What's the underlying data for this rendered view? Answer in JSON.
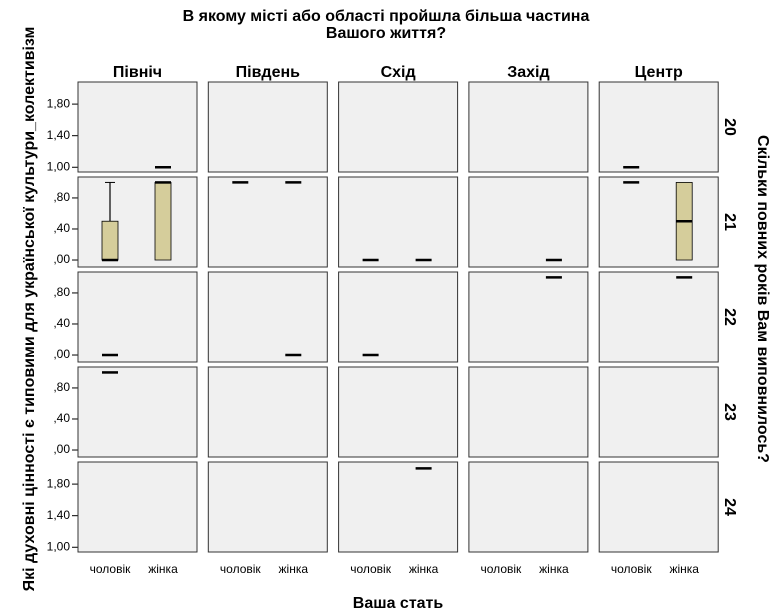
{
  "chart_data": {
    "type": "boxplot",
    "title": "В якому місті або області пройшла більша частина Вашого життя?",
    "x_label": "Ваша стать",
    "y_label": "Які духовні цінності є типовими для української культури_колективізм",
    "row_title": "Скільки повних років Вам виповнилось?",
    "columns": [
      "Північ",
      "Південь",
      "Схід",
      "Захід",
      "Центр"
    ],
    "categories": [
      "чоловік",
      "жінка"
    ],
    "box_color": "#d5cd9b",
    "rows": [
      {
        "label": "20",
        "ylim": [
          0.94,
          2.08
        ],
        "yticks": [
          {
            "value": 1.8,
            "label": "1,80"
          },
          {
            "value": 1.4,
            "label": "1,40"
          },
          {
            "value": 1,
            "label": "1,00"
          }
        ],
        "cells": [
          [
            null,
            {
              "min": 1,
              "q1": 1,
              "median": 1,
              "q3": 1,
              "max": 1
            }
          ],
          [
            null,
            null
          ],
          [
            null,
            null
          ],
          [
            null,
            null
          ],
          [
            {
              "min": 1,
              "q1": 1,
              "median": 1,
              "q3": 1,
              "max": 1
            },
            null
          ]
        ]
      },
      {
        "label": "21",
        "ylim": [
          -0.09,
          1.07
        ],
        "yticks": [
          {
            "value": 0.8,
            "label": ",80"
          },
          {
            "value": 0.4,
            "label": ",40"
          },
          {
            "value": 0,
            "label": ",00"
          }
        ],
        "cells": [
          [
            {
              "min": 0,
              "q1": 0,
              "median": 0,
              "q3": 0.5,
              "max": 1
            },
            {
              "min": 0,
              "q1": 0,
              "median": 1,
              "q3": 1,
              "max": 1
            }
          ],
          [
            {
              "min": 1,
              "q1": 1,
              "median": 1,
              "q3": 1,
              "max": 1
            },
            {
              "min": 1,
              "q1": 1,
              "median": 1,
              "q3": 1,
              "max": 1
            }
          ],
          [
            {
              "min": 0,
              "q1": 0,
              "median": 0,
              "q3": 0,
              "max": 0
            },
            {
              "min": 0,
              "q1": 0,
              "median": 0,
              "q3": 0,
              "max": 0
            }
          ],
          [
            null,
            {
              "min": 0,
              "q1": 0,
              "median": 0,
              "q3": 0,
              "max": 0
            }
          ],
          [
            {
              "min": 1,
              "q1": 1,
              "median": 1,
              "q3": 1,
              "max": 1
            },
            {
              "min": 0,
              "q1": 0,
              "median": 0.5,
              "q3": 1,
              "max": 1
            }
          ]
        ]
      },
      {
        "label": "22",
        "ylim": [
          -0.09,
          1.07
        ],
        "yticks": [
          {
            "value": 0.8,
            "label": ",80"
          },
          {
            "value": 0.4,
            "label": ",40"
          },
          {
            "value": 0,
            "label": ",00"
          }
        ],
        "cells": [
          [
            {
              "min": 0,
              "q1": 0,
              "median": 0,
              "q3": 0,
              "max": 0
            },
            null
          ],
          [
            null,
            {
              "min": 0,
              "q1": 0,
              "median": 0,
              "q3": 0,
              "max": 0
            }
          ],
          [
            {
              "min": 0,
              "q1": 0,
              "median": 0,
              "q3": 0,
              "max": 0
            },
            null
          ],
          [
            null,
            {
              "min": 1,
              "q1": 1,
              "median": 1,
              "q3": 1,
              "max": 1
            }
          ],
          [
            null,
            {
              "min": 1,
              "q1": 1,
              "median": 1,
              "q3": 1,
              "max": 1
            }
          ]
        ]
      },
      {
        "label": "23",
        "ylim": [
          -0.09,
          1.07
        ],
        "yticks": [
          {
            "value": 0.8,
            "label": ",80"
          },
          {
            "value": 0.4,
            "label": ",40"
          },
          {
            "value": 0,
            "label": ",00"
          }
        ],
        "cells": [
          [
            {
              "min": 1,
              "q1": 1,
              "median": 1,
              "q3": 1,
              "max": 1
            },
            null
          ],
          [
            null,
            null
          ],
          [
            null,
            null
          ],
          [
            null,
            null
          ],
          [
            null,
            null
          ]
        ]
      },
      {
        "label": "24",
        "ylim": [
          0.94,
          2.08
        ],
        "yticks": [
          {
            "value": 1.8,
            "label": "1,80"
          },
          {
            "value": 1.4,
            "label": "1,40"
          },
          {
            "value": 1,
            "label": "1,00"
          }
        ],
        "cells": [
          [
            null,
            null
          ],
          [
            null,
            null
          ],
          [
            null,
            {
              "min": 2,
              "q1": 2,
              "median": 2,
              "q3": 2,
              "max": 2
            }
          ],
          [
            null,
            null
          ],
          [
            null,
            null
          ]
        ]
      }
    ]
  }
}
